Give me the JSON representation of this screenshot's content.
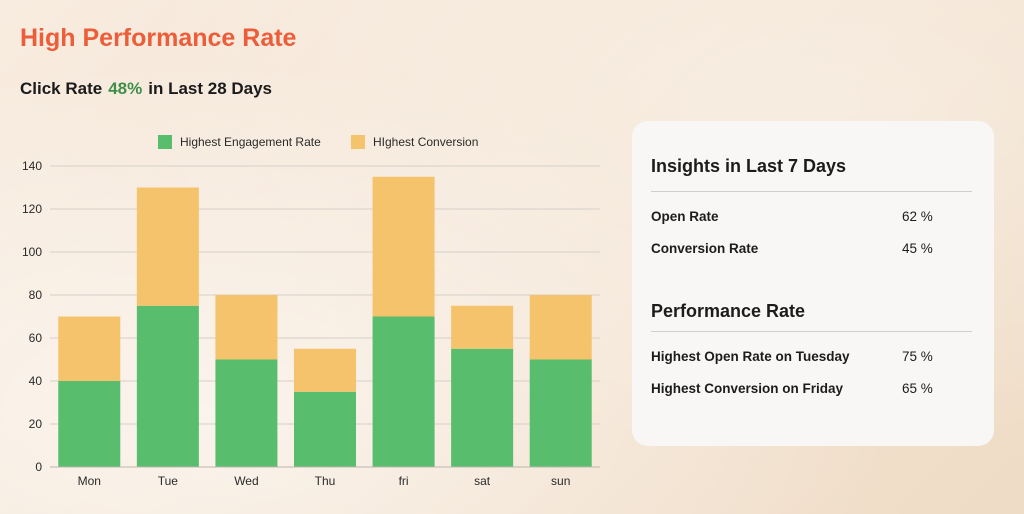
{
  "header": {
    "title": "High Performance Rate",
    "subtitle_prefix": "Click Rate",
    "subtitle_rate": "48%",
    "subtitle_suffix": "in Last 28 Days"
  },
  "colors": {
    "engagement": "#58bd6c",
    "conversion": "#f5c36c",
    "title": "#ec5d3a",
    "rate": "#3f8f4a"
  },
  "chart_data": {
    "type": "bar",
    "stacked": true,
    "categories": [
      "Mon",
      "Tue",
      "Wed",
      "Thu",
      "fri",
      "sat",
      "sun"
    ],
    "series": [
      {
        "name": "Highest Engagement Rate",
        "values": [
          40,
          75,
          50,
          35,
          70,
          55,
          50
        ]
      },
      {
        "name": "HIghest Conversion",
        "values": [
          30,
          55,
          30,
          20,
          65,
          20,
          30
        ]
      }
    ],
    "ylim": [
      0,
      140
    ],
    "yticks": [
      0,
      20,
      40,
      60,
      80,
      100,
      120,
      140
    ],
    "grid": true,
    "legend": "top"
  },
  "insights": {
    "title": "Insights in Last 7 Days",
    "items": [
      {
        "label": "Open Rate",
        "value": "62 %"
      },
      {
        "label": "Conversion Rate",
        "value": "45 %"
      }
    ]
  },
  "performance": {
    "title": "Performance Rate",
    "items": [
      {
        "label": "Highest Open Rate on Tuesday",
        "value": "75 %"
      },
      {
        "label": "Highest Conversion  on Friday",
        "value": "65 %"
      }
    ]
  }
}
